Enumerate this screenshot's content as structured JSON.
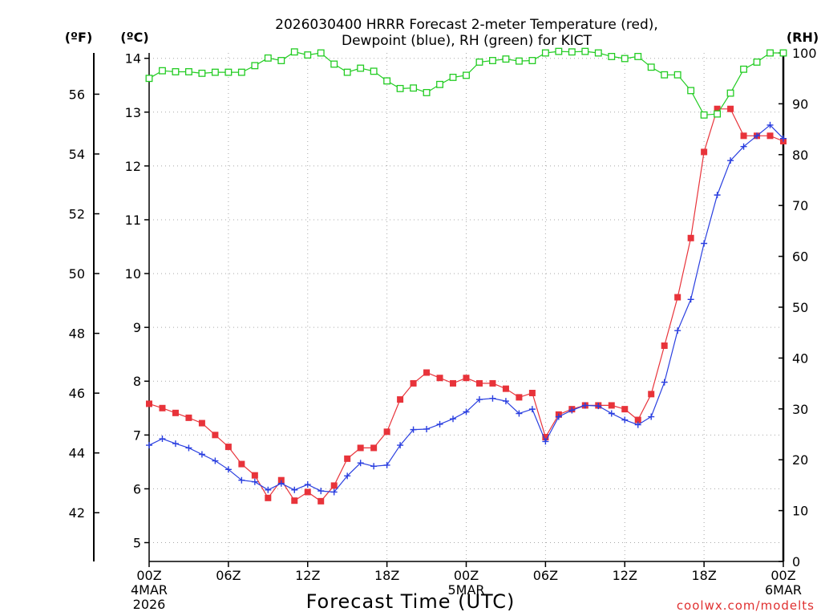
{
  "chart_data": {
    "type": "line",
    "title_line1": "2026030400 HRRR Forecast 2-meter Temperature (red),",
    "title_line2": "Dewpoint (blue), RH (green) for KICT",
    "xlabel": "Forecast Time (UTC)",
    "credit": "coolwx.com/modelts",
    "units": {
      "f": "(ºF)",
      "c": "(ºC)",
      "rh": "(RH)"
    },
    "ylim_c": [
      4.65,
      14.1
    ],
    "ylim_f": [
      40.37,
      57.38
    ],
    "ylim_rh": [
      0,
      100
    ],
    "x_ticks": [
      {
        "h": 0,
        "label": "00Z",
        "sub1": "4MAR",
        "sub2": "2026"
      },
      {
        "h": 6,
        "label": "06Z"
      },
      {
        "h": 12,
        "label": "12Z"
      },
      {
        "h": 18,
        "label": "18Z"
      },
      {
        "h": 24,
        "label": "00Z",
        "sub1": "5MAR"
      },
      {
        "h": 30,
        "label": "06Z"
      },
      {
        "h": 36,
        "label": "12Z"
      },
      {
        "h": 42,
        "label": "18Z"
      },
      {
        "h": 48,
        "label": "00Z",
        "sub1": "6MAR"
      }
    ],
    "yc_ticks": [
      "5",
      "6",
      "7",
      "8",
      "9",
      "10",
      "11",
      "12",
      "13",
      "14"
    ],
    "yf_ticks": [
      "42",
      "44",
      "46",
      "48",
      "50",
      "52",
      "54",
      "56"
    ],
    "yrh_ticks": [
      "0",
      "10",
      "20",
      "30",
      "40",
      "50",
      "60",
      "70",
      "80",
      "90",
      "100"
    ],
    "x_hours": [
      0,
      1,
      2,
      3,
      4,
      5,
      6,
      7,
      8,
      9,
      10,
      11,
      12,
      13,
      14,
      15,
      16,
      17,
      18,
      19,
      20,
      21,
      22,
      23,
      24,
      25,
      26,
      27,
      28,
      29,
      30,
      31,
      32,
      33,
      34,
      35,
      36,
      37,
      38,
      39,
      40,
      41,
      42,
      43,
      44,
      45,
      46,
      47,
      48
    ],
    "series": [
      {
        "name": "Temperature",
        "unit": "C",
        "color": "#e8333a",
        "marker": "filled-square",
        "values": [
          7.58,
          7.5,
          7.41,
          7.32,
          7.22,
          7.0,
          6.78,
          6.46,
          6.25,
          5.83,
          6.16,
          5.78,
          5.94,
          5.77,
          6.06,
          6.56,
          6.76,
          6.76,
          7.06,
          7.66,
          7.96,
          8.16,
          8.06,
          7.96,
          8.06,
          7.96,
          7.96,
          7.86,
          7.7,
          7.78,
          6.96,
          7.38,
          7.48,
          7.55,
          7.55,
          7.55,
          7.48,
          7.28,
          7.76,
          8.66,
          9.56,
          10.66,
          12.26,
          13.06,
          13.06,
          12.56,
          12.56,
          12.56,
          12.46
        ]
      },
      {
        "name": "Dewpoint",
        "unit": "C",
        "color": "#2a3fe0",
        "marker": "plus",
        "values": [
          6.81,
          6.93,
          6.84,
          6.76,
          6.64,
          6.52,
          6.36,
          6.16,
          6.13,
          5.98,
          6.1,
          5.98,
          6.08,
          5.96,
          5.94,
          6.24,
          6.48,
          6.42,
          6.44,
          6.81,
          7.1,
          7.11,
          7.2,
          7.3,
          7.43,
          7.66,
          7.68,
          7.63,
          7.4,
          7.48,
          6.88,
          7.34,
          7.46,
          7.55,
          7.54,
          7.4,
          7.28,
          7.19,
          7.34,
          7.98,
          8.94,
          9.52,
          10.56,
          11.46,
          12.1,
          12.36,
          12.56,
          12.76,
          12.51
        ]
      },
      {
        "name": "RH",
        "unit": "%",
        "color": "#22cc22",
        "marker": "open-square",
        "values": [
          95,
          96.5,
          96.3,
          96.3,
          96,
          96.2,
          96.2,
          96.2,
          97.5,
          99,
          98.5,
          100.2,
          99.6,
          100,
          97.8,
          96.2,
          97,
          96.4,
          94.5,
          93,
          93.1,
          92.2,
          93.8,
          95.2,
          95.6,
          98.2,
          98.5,
          98.8,
          98.4,
          98.5,
          100,
          100.3,
          100.2,
          100.3,
          100,
          99.3,
          98.9,
          99.3,
          97.2,
          95.7,
          95.7,
          92.6,
          87.8,
          88,
          92.1,
          96.8,
          98.2,
          100,
          100
        ]
      }
    ]
  }
}
